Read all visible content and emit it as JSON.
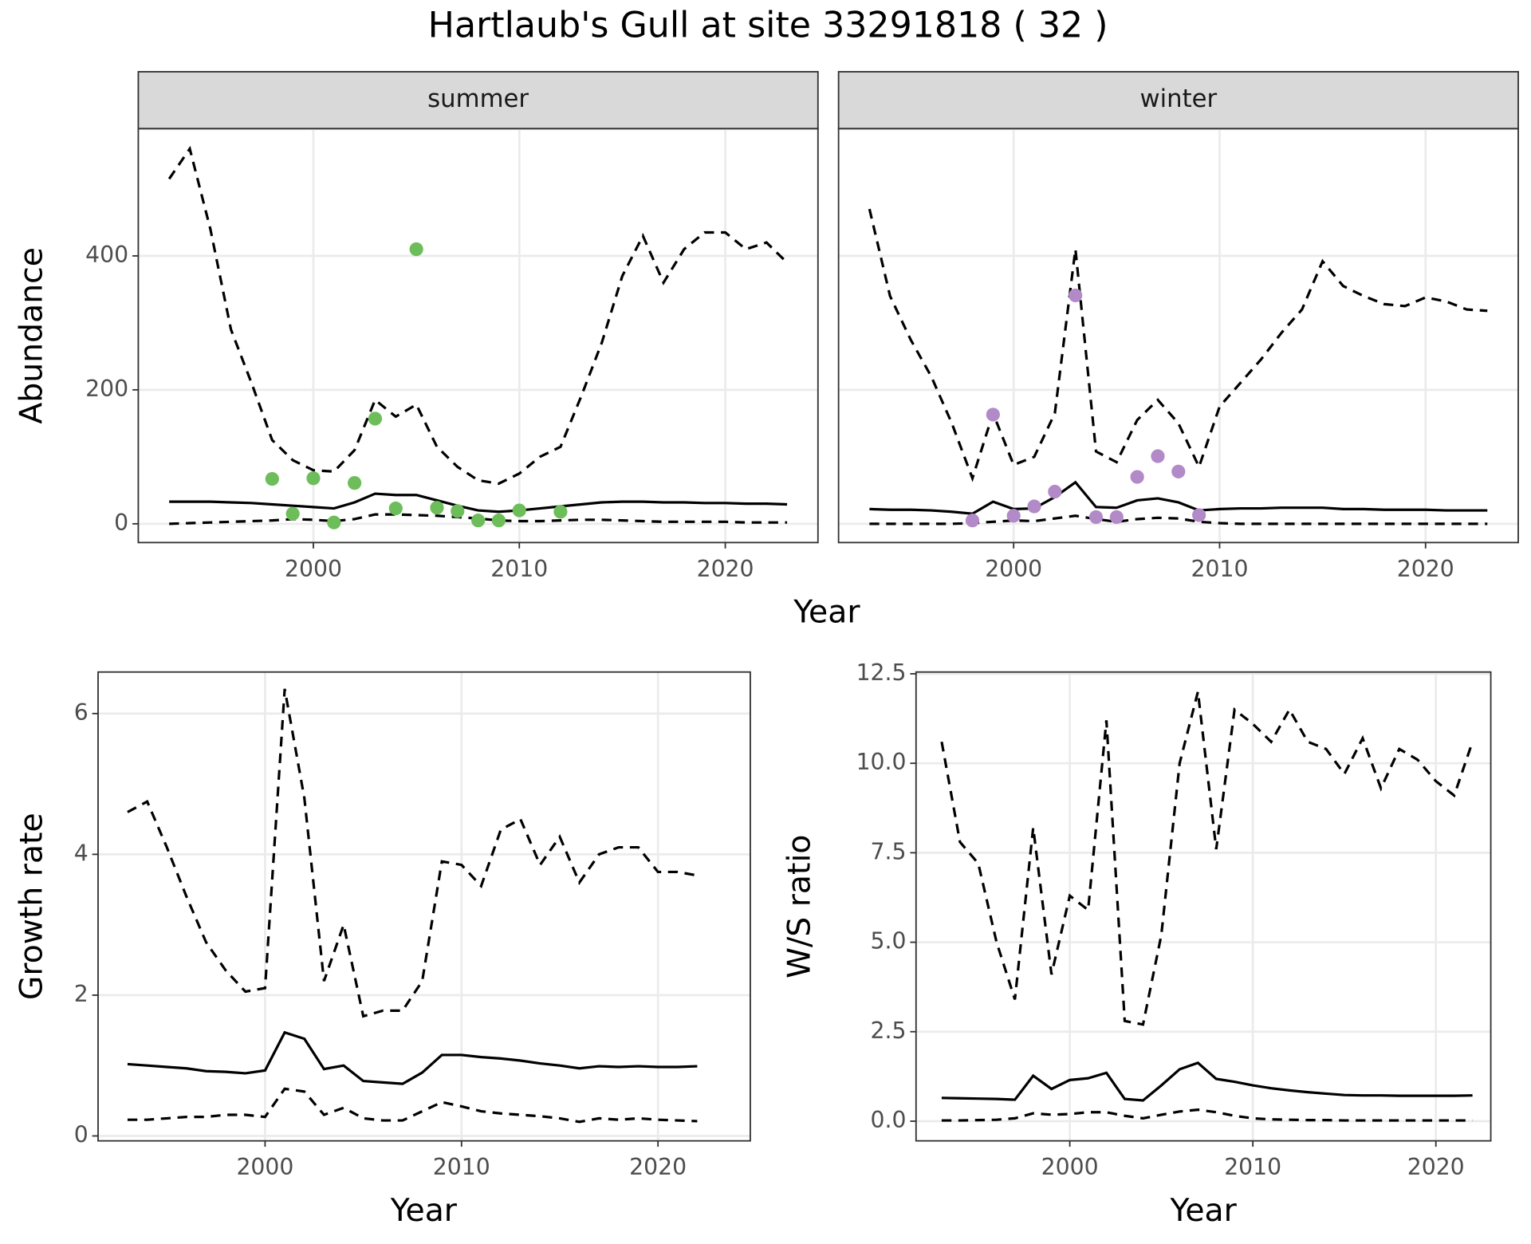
{
  "title": "Hartlaub's Gull at site 33291818 ( 32 )",
  "chart_data": [
    {
      "type": "line",
      "strip": "summer",
      "xlabel": "Year",
      "ylabel": "Abundance",
      "xlim": [
        1991.5,
        2024.5
      ],
      "xticks": [
        2000,
        2010,
        2020
      ],
      "ylim": [
        -28,
        590
      ],
      "yticks": [
        0,
        200,
        400
      ],
      "y_tick_labels": true,
      "grid": true,
      "x": [
        1993,
        1994,
        1995,
        1996,
        1997,
        1998,
        1999,
        2000,
        2001,
        2002,
        2003,
        2004,
        2005,
        2006,
        2007,
        2008,
        2009,
        2010,
        2011,
        2012,
        2013,
        2014,
        2015,
        2016,
        2017,
        2018,
        2019,
        2020,
        2021,
        2022,
        2023
      ],
      "series": [
        {
          "kind": "line",
          "dashed": true,
          "color": "#000000",
          "values": [
            515,
            560,
            440,
            290,
            210,
            125,
            95,
            80,
            78,
            110,
            185,
            160,
            178,
            115,
            85,
            65,
            60,
            75,
            100,
            115,
            190,
            270,
            370,
            430,
            360,
            410,
            435,
            435,
            410,
            420,
            390
          ]
        },
        {
          "kind": "line",
          "dashed": false,
          "color": "#000000",
          "values": [
            33,
            33,
            33,
            32,
            31,
            29,
            27,
            25,
            23,
            32,
            45,
            43,
            43,
            35,
            27,
            20,
            18,
            20,
            23,
            26,
            29,
            32,
            33,
            33,
            32,
            32,
            31,
            31,
            30,
            30,
            29
          ]
        },
        {
          "kind": "line",
          "dashed": true,
          "color": "#000000",
          "values": [
            0,
            1,
            2,
            3,
            4,
            5,
            7,
            6,
            4,
            7,
            14,
            14,
            13,
            12,
            10,
            8,
            5,
            4,
            4,
            5,
            6,
            6,
            5,
            4,
            3,
            3,
            3,
            3,
            2,
            2,
            2
          ]
        },
        {
          "kind": "points",
          "color": "#6dbe5b",
          "x": [
            1998,
            1999,
            2000,
            2001,
            2002,
            2003,
            2004,
            2005,
            2006,
            2007,
            2008,
            2009,
            2010,
            2012
          ],
          "values": [
            67,
            15,
            68,
            2,
            61,
            157,
            23,
            410,
            24,
            19,
            5,
            5,
            20,
            18
          ]
        }
      ]
    },
    {
      "type": "line",
      "strip": "winter",
      "xlim": [
        1991.5,
        2024.5
      ],
      "xticks": [
        2000,
        2010,
        2020
      ],
      "ylim": [
        -28,
        590
      ],
      "yticks": [
        0,
        200,
        400
      ],
      "y_tick_labels": false,
      "grid": true,
      "x": [
        1993,
        1994,
        1995,
        1996,
        1997,
        1998,
        1999,
        2000,
        2001,
        2002,
        2003,
        2004,
        2005,
        2006,
        2007,
        2008,
        2009,
        2010,
        2011,
        2012,
        2013,
        2014,
        2015,
        2016,
        2017,
        2018,
        2019,
        2020,
        2021,
        2022,
        2023
      ],
      "series": [
        {
          "kind": "line",
          "dashed": true,
          "color": "#000000",
          "values": [
            470,
            340,
            275,
            220,
            150,
            68,
            165,
            88,
            100,
            165,
            410,
            108,
            92,
            155,
            185,
            150,
            85,
            175,
            210,
            245,
            285,
            320,
            392,
            355,
            340,
            328,
            325,
            338,
            332,
            320,
            318
          ]
        },
        {
          "kind": "line",
          "dashed": false,
          "color": "#000000",
          "values": [
            22,
            21,
            21,
            20,
            18,
            15,
            33,
            22,
            23,
            40,
            62,
            25,
            24,
            35,
            38,
            32,
            20,
            22,
            23,
            23,
            24,
            24,
            24,
            22,
            22,
            21,
            21,
            21,
            20,
            20,
            20
          ]
        },
        {
          "kind": "line",
          "dashed": true,
          "color": "#000000",
          "values": [
            0,
            0,
            0,
            0,
            0,
            1,
            3,
            5,
            4,
            8,
            12,
            7,
            3,
            7,
            9,
            8,
            3,
            1,
            0,
            0,
            0,
            0,
            0,
            0,
            0,
            0,
            0,
            0,
            0,
            0,
            0
          ]
        },
        {
          "kind": "points",
          "color": "#b38ac8",
          "x": [
            1998,
            1999,
            2000,
            2001,
            2002,
            2003,
            2004,
            2005,
            2006,
            2007,
            2008,
            2009
          ],
          "values": [
            5,
            163,
            12,
            26,
            48,
            341,
            10,
            10,
            70,
            101,
            78,
            13
          ]
        }
      ]
    },
    {
      "type": "line",
      "xlabel": "Year",
      "ylabel": "Growth rate",
      "xlim": [
        1991.5,
        2024.7
      ],
      "xticks": [
        2000,
        2010,
        2020
      ],
      "ylim": [
        -0.07,
        6.59
      ],
      "yticks": [
        0,
        2,
        4,
        6
      ],
      "y_tick_labels": true,
      "grid": true,
      "x": [
        1993,
        1994,
        1995,
        1996,
        1997,
        1998,
        1999,
        2000,
        2001,
        2002,
        2003,
        2004,
        2005,
        2006,
        2007,
        2008,
        2009,
        2010,
        2011,
        2012,
        2013,
        2014,
        2015,
        2016,
        2017,
        2018,
        2019,
        2020,
        2021,
        2022
      ],
      "series": [
        {
          "kind": "line",
          "dashed": true,
          "color": "#000000",
          "values": [
            4.6,
            4.75,
            4.1,
            3.4,
            2.75,
            2.35,
            2.05,
            2.1,
            6.35,
            4.8,
            2.2,
            3.0,
            1.7,
            1.78,
            1.78,
            2.2,
            3.9,
            3.85,
            3.55,
            4.35,
            4.5,
            3.85,
            4.25,
            3.6,
            4.0,
            4.1,
            4.1,
            3.75,
            3.75,
            3.7
          ]
        },
        {
          "kind": "line",
          "dashed": false,
          "color": "#000000",
          "values": [
            1.02,
            1.0,
            0.98,
            0.96,
            0.92,
            0.91,
            0.89,
            0.93,
            1.47,
            1.38,
            0.95,
            1.0,
            0.78,
            0.76,
            0.74,
            0.9,
            1.15,
            1.15,
            1.12,
            1.1,
            1.07,
            1.03,
            1.0,
            0.96,
            0.99,
            0.98,
            0.99,
            0.98,
            0.98,
            0.99
          ]
        },
        {
          "kind": "line",
          "dashed": true,
          "color": "#000000",
          "values": [
            0.23,
            0.23,
            0.25,
            0.27,
            0.27,
            0.3,
            0.3,
            0.27,
            0.67,
            0.63,
            0.3,
            0.4,
            0.25,
            0.22,
            0.22,
            0.35,
            0.48,
            0.42,
            0.35,
            0.32,
            0.3,
            0.28,
            0.25,
            0.2,
            0.25,
            0.23,
            0.25,
            0.23,
            0.22,
            0.21
          ]
        }
      ]
    },
    {
      "type": "line",
      "xlabel": "Year",
      "ylabel": "W/S ratio",
      "xlim": [
        1991.6,
        2023.0
      ],
      "xticks": [
        2000,
        2010,
        2020
      ],
      "ylim": [
        -0.55,
        12.55
      ],
      "yticks": [
        {
          "value": 0,
          "label": "0.0"
        },
        {
          "value": 2.5,
          "label": "2.5"
        },
        {
          "value": 5,
          "label": "5.0"
        },
        {
          "value": 7.5,
          "label": "7.5"
        },
        {
          "value": 10,
          "label": "10.0"
        },
        {
          "value": 12.5,
          "label": "12.5"
        }
      ],
      "y_tick_labels": true,
      "grid": true,
      "x": [
        1993,
        1994,
        1995,
        1996,
        1997,
        1998,
        1999,
        2000,
        2001,
        2002,
        2003,
        2004,
        2005,
        2006,
        2007,
        2008,
        2009,
        2010,
        2011,
        2012,
        2013,
        2014,
        2015,
        2016,
        2017,
        2018,
        2019,
        2020,
        2021,
        2022
      ],
      "series": [
        {
          "kind": "line",
          "dashed": true,
          "color": "#000000",
          "values": [
            10.6,
            7.8,
            7.2,
            5.0,
            3.4,
            8.2,
            4.1,
            6.3,
            5.9,
            11.2,
            2.8,
            2.7,
            5.2,
            10.0,
            12.0,
            7.6,
            11.5,
            11.1,
            10.6,
            11.5,
            10.6,
            10.4,
            9.7,
            10.7,
            9.3,
            10.4,
            10.1,
            9.5,
            9.1,
            10.6
          ]
        },
        {
          "kind": "line",
          "dashed": false,
          "color": "#000000",
          "values": [
            0.65,
            0.64,
            0.63,
            0.62,
            0.6,
            1.27,
            0.9,
            1.15,
            1.2,
            1.35,
            0.62,
            0.58,
            1.0,
            1.45,
            1.63,
            1.18,
            1.1,
            1.0,
            0.92,
            0.86,
            0.81,
            0.77,
            0.73,
            0.72,
            0.72,
            0.71,
            0.71,
            0.71,
            0.71,
            0.72
          ]
        },
        {
          "kind": "line",
          "dashed": true,
          "color": "#000000",
          "values": [
            0.02,
            0.02,
            0.03,
            0.04,
            0.08,
            0.22,
            0.18,
            0.2,
            0.25,
            0.25,
            0.15,
            0.08,
            0.18,
            0.27,
            0.32,
            0.25,
            0.15,
            0.08,
            0.05,
            0.04,
            0.03,
            0.03,
            0.02,
            0.02,
            0.02,
            0.02,
            0.02,
            0.02,
            0.02,
            0.02
          ]
        }
      ]
    }
  ]
}
